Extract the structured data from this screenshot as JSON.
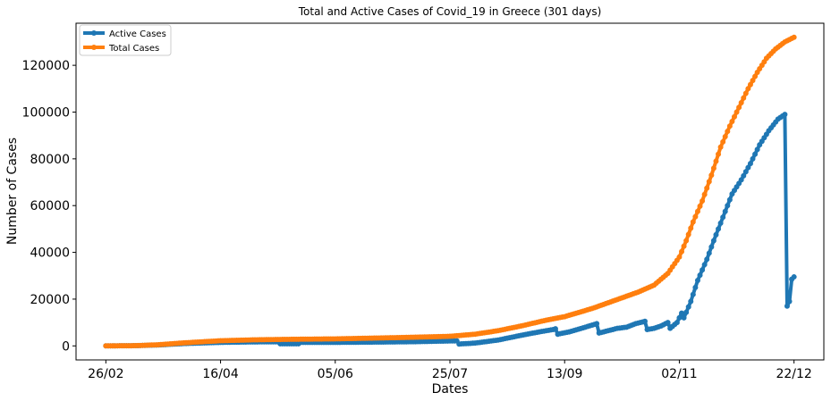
{
  "chart_data": {
    "type": "line",
    "title": "Total and Active Cases of Covid_19 in Greece (301 days)",
    "xlabel": "Dates",
    "ylabel": "Number of Cases",
    "x_start": "2020-02-26",
    "x_end": "2020-12-22",
    "xlim": [
      "2020-02-13",
      "2021-01-04"
    ],
    "ylim": [
      -6000,
      138000
    ],
    "x_ticks": [
      {
        "date": "2020-02-26",
        "label": "26/02"
      },
      {
        "date": "2020-04-16",
        "label": "16/04"
      },
      {
        "date": "2020-06-05",
        "label": "05/06"
      },
      {
        "date": "2020-07-25",
        "label": "25/07"
      },
      {
        "date": "2020-09-13",
        "label": "13/09"
      },
      {
        "date": "2020-11-02",
        "label": "02/11"
      },
      {
        "date": "2020-12-22",
        "label": "22/12"
      }
    ],
    "y_ticks": [
      0,
      20000,
      40000,
      60000,
      80000,
      100000,
      120000
    ],
    "grid": false,
    "legend_position": "top-left",
    "series": [
      {
        "name": "Active Cases",
        "color": "#1f77b4",
        "points": [
          [
            "2020-02-26",
            0
          ],
          [
            "2020-03-10",
            100
          ],
          [
            "2020-03-20",
            400
          ],
          [
            "2020-03-31",
            1000
          ],
          [
            "2020-04-16",
            1500
          ],
          [
            "2020-04-30",
            1700
          ],
          [
            "2020-05-11",
            1750
          ],
          [
            "2020-05-12",
            900
          ],
          [
            "2020-05-20",
            900
          ],
          [
            "2020-05-21",
            1500
          ],
          [
            "2020-06-05",
            1500
          ],
          [
            "2020-06-20",
            1600
          ],
          [
            "2020-07-01",
            1700
          ],
          [
            "2020-07-10",
            1800
          ],
          [
            "2020-07-25",
            2100
          ],
          [
            "2020-07-28",
            2150
          ],
          [
            "2020-07-29",
            800
          ],
          [
            "2020-08-05",
            1200
          ],
          [
            "2020-08-15",
            2500
          ],
          [
            "2020-08-25",
            4500
          ],
          [
            "2020-09-02",
            6000
          ],
          [
            "2020-09-08",
            7000
          ],
          [
            "2020-09-09",
            7300
          ],
          [
            "2020-09-10",
            5000
          ],
          [
            "2020-09-15",
            6000
          ],
          [
            "2020-09-22",
            8000
          ],
          [
            "2020-09-27",
            9500
          ],
          [
            "2020-09-28",
            5500
          ],
          [
            "2020-10-02",
            6500
          ],
          [
            "2020-10-06",
            7500
          ],
          [
            "2020-10-10",
            8000
          ],
          [
            "2020-10-14",
            9500
          ],
          [
            "2020-10-18",
            10500
          ],
          [
            "2020-10-19",
            7000
          ],
          [
            "2020-10-22",
            7500
          ],
          [
            "2020-10-25",
            8500
          ],
          [
            "2020-10-28",
            10000
          ],
          [
            "2020-10-29",
            7500
          ],
          [
            "2020-11-01",
            10000
          ],
          [
            "2020-11-03",
            14000
          ],
          [
            "2020-11-04",
            12000
          ],
          [
            "2020-11-07",
            19000
          ],
          [
            "2020-11-10",
            28000
          ],
          [
            "2020-11-14",
            37000
          ],
          [
            "2020-11-17",
            45000
          ],
          [
            "2020-11-21",
            55000
          ],
          [
            "2020-11-25",
            65000
          ],
          [
            "2020-11-29",
            71000
          ],
          [
            "2020-12-03",
            78000
          ],
          [
            "2020-12-07",
            86000
          ],
          [
            "2020-12-11",
            92000
          ],
          [
            "2020-12-15",
            97000
          ],
          [
            "2020-12-18",
            99000
          ],
          [
            "2020-12-19",
            17000
          ],
          [
            "2020-12-20",
            19000
          ],
          [
            "2020-12-21",
            28500
          ],
          [
            "2020-12-22",
            29500
          ]
        ]
      },
      {
        "name": "Total Cases",
        "color": "#ff7f0e",
        "points": [
          [
            "2020-02-26",
            0
          ],
          [
            "2020-03-10",
            100
          ],
          [
            "2020-03-20",
            500
          ],
          [
            "2020-03-31",
            1300
          ],
          [
            "2020-04-16",
            2200
          ],
          [
            "2020-05-01",
            2600
          ],
          [
            "2020-05-15",
            2800
          ],
          [
            "2020-06-05",
            3000
          ],
          [
            "2020-06-20",
            3300
          ],
          [
            "2020-07-05",
            3600
          ],
          [
            "2020-07-25",
            4100
          ],
          [
            "2020-08-05",
            5000
          ],
          [
            "2020-08-15",
            6500
          ],
          [
            "2020-08-25",
            8500
          ],
          [
            "2020-09-05",
            11000
          ],
          [
            "2020-09-13",
            12500
          ],
          [
            "2020-09-25",
            16000
          ],
          [
            "2020-10-05",
            19500
          ],
          [
            "2020-10-15",
            23000
          ],
          [
            "2020-10-22",
            26000
          ],
          [
            "2020-10-28",
            31000
          ],
          [
            "2020-11-02",
            38000
          ],
          [
            "2020-11-05",
            45000
          ],
          [
            "2020-11-08",
            53000
          ],
          [
            "2020-11-12",
            62000
          ],
          [
            "2020-11-16",
            73000
          ],
          [
            "2020-11-20",
            85000
          ],
          [
            "2020-11-24",
            94000
          ],
          [
            "2020-11-28",
            102000
          ],
          [
            "2020-12-02",
            110000
          ],
          [
            "2020-12-06",
            117000
          ],
          [
            "2020-12-10",
            123000
          ],
          [
            "2020-12-14",
            127000
          ],
          [
            "2020-12-18",
            130000
          ],
          [
            "2020-12-22",
            132000
          ]
        ]
      }
    ]
  }
}
